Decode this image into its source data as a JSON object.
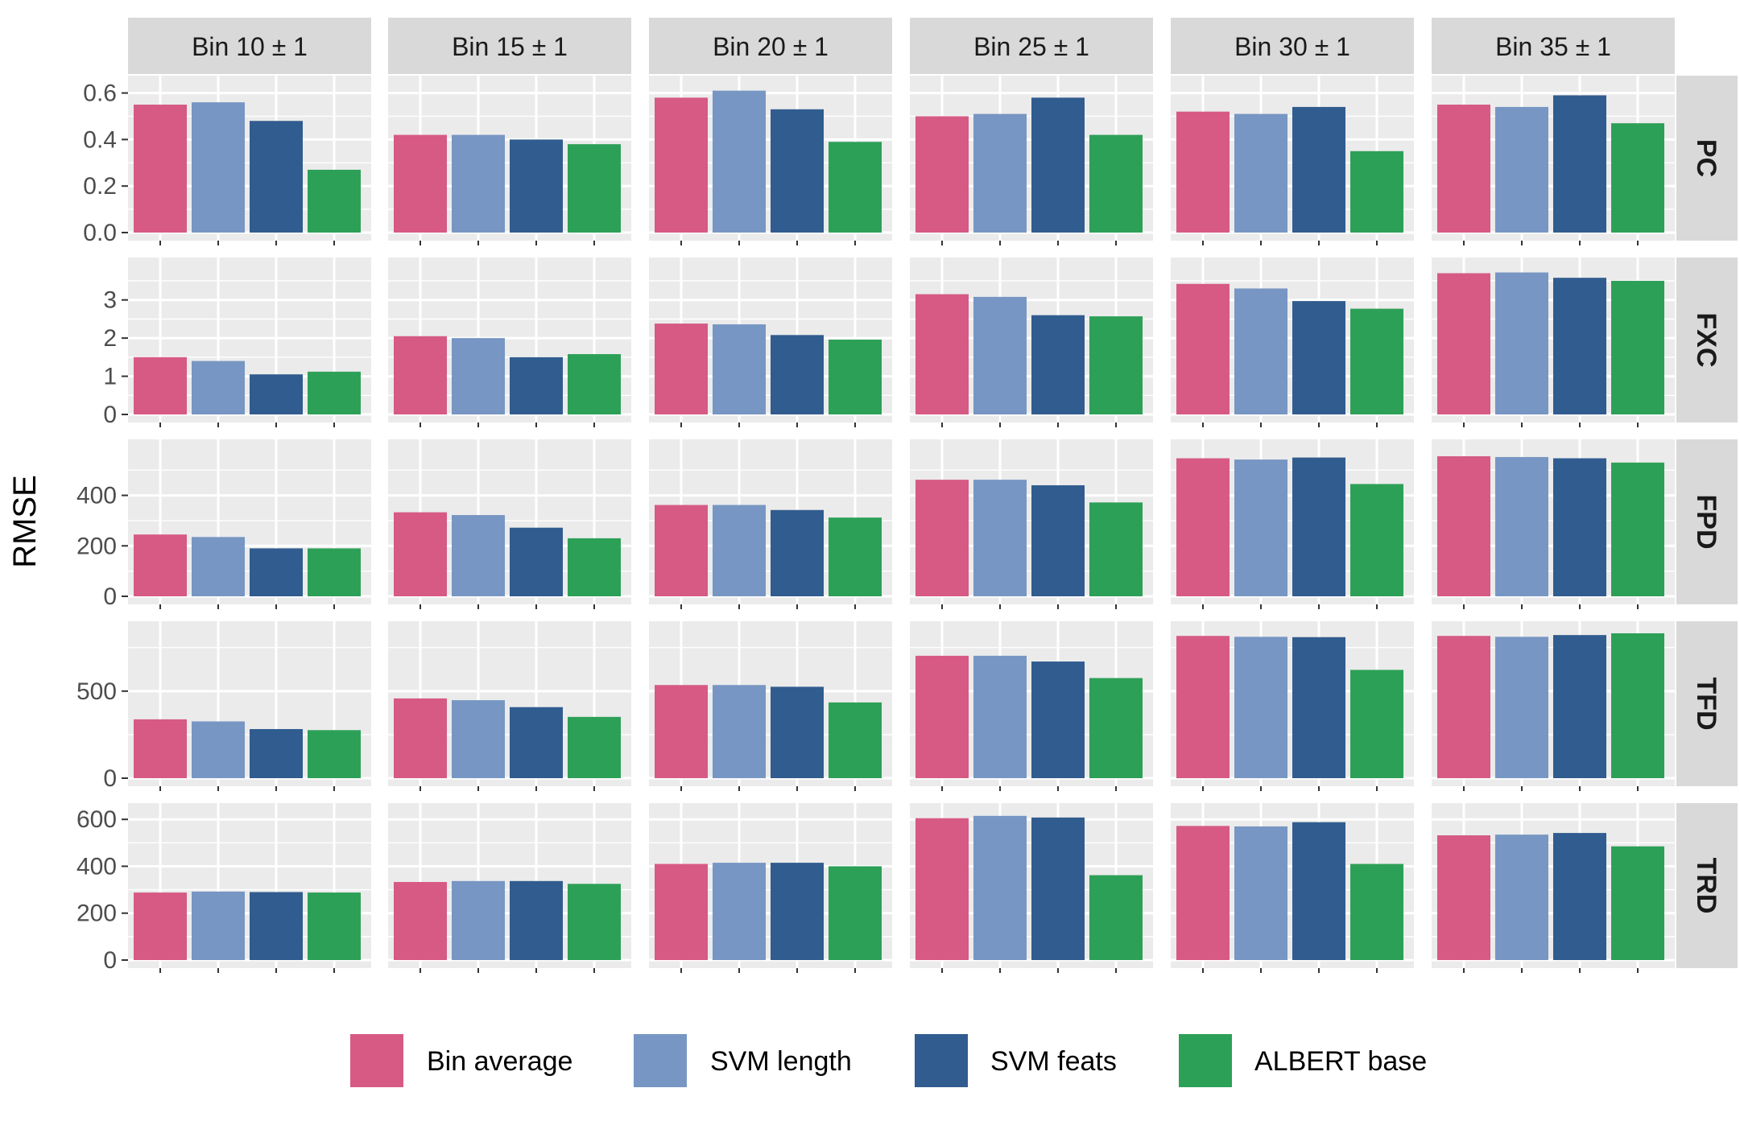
{
  "chart_data": {
    "type": "bar",
    "ylabel": "RMSE",
    "xlabel": "",
    "legend_position": "bottom",
    "grid": true,
    "columns": [
      "Bin 10 ± 1",
      "Bin 15 ± 1",
      "Bin 20 ± 1",
      "Bin 25 ± 1",
      "Bin 30 ± 1",
      "Bin 35 ± 1"
    ],
    "series": [
      {
        "name": "Bin average",
        "color": "#d65a84"
      },
      {
        "name": "SVM length",
        "color": "#7796c3"
      },
      {
        "name": "SVM feats",
        "color": "#315c8f"
      },
      {
        "name": "ALBERT base",
        "color": "#2da057"
      }
    ],
    "rows": [
      {
        "label": "PC",
        "ylim": [
          0,
          0.64
        ],
        "ticks": [
          0.0,
          0.2,
          0.4,
          0.6
        ],
        "tick_labels": [
          "0.0",
          "0.2",
          "0.4",
          "0.6"
        ],
        "values": [
          [
            0.55,
            0.56,
            0.48,
            0.27
          ],
          [
            0.42,
            0.42,
            0.4,
            0.38
          ],
          [
            0.58,
            0.61,
            0.53,
            0.39
          ],
          [
            0.5,
            0.51,
            0.58,
            0.42
          ],
          [
            0.52,
            0.51,
            0.54,
            0.35
          ],
          [
            0.55,
            0.54,
            0.59,
            0.47
          ]
        ]
      },
      {
        "label": "FXC",
        "ylim": [
          0,
          3.9
        ],
        "ticks": [
          0,
          1,
          2,
          3
        ],
        "tick_labels": [
          "0",
          "1",
          "2",
          "3"
        ],
        "values": [
          [
            1.5,
            1.4,
            1.05,
            1.12
          ],
          [
            2.05,
            2.0,
            1.5,
            1.58
          ],
          [
            2.38,
            2.36,
            2.08,
            1.96
          ],
          [
            3.15,
            3.08,
            2.6,
            2.57
          ],
          [
            3.42,
            3.3,
            2.97,
            2.77
          ],
          [
            3.7,
            3.72,
            3.58,
            3.5
          ]
        ]
      },
      {
        "label": "FPD",
        "ylim": [
          0,
          590
        ],
        "ticks": [
          0,
          200,
          400
        ],
        "tick_labels": [
          "0",
          "200",
          "400"
        ],
        "values": [
          [
            245,
            235,
            190,
            190
          ],
          [
            333,
            322,
            272,
            230
          ],
          [
            362,
            362,
            342,
            312
          ],
          [
            462,
            462,
            440,
            372
          ],
          [
            547,
            542,
            550,
            445
          ],
          [
            555,
            552,
            547,
            530
          ]
        ]
      },
      {
        "label": "TFD",
        "ylim": [
          0,
          855
        ],
        "ticks": [
          0,
          500
        ],
        "tick_labels": [
          "0",
          "500"
        ],
        "values": [
          [
            338,
            326,
            282,
            276
          ],
          [
            458,
            448,
            408,
            352
          ],
          [
            535,
            535,
            525,
            435
          ],
          [
            703,
            703,
            670,
            575
          ],
          [
            817,
            812,
            810,
            622
          ],
          [
            817,
            812,
            822,
            832
          ]
        ]
      },
      {
        "label": "TRD",
        "ylim": [
          0,
          635
        ],
        "ticks": [
          0,
          200,
          400,
          600
        ],
        "tick_labels": [
          "0",
          "200",
          "400",
          "600"
        ],
        "values": [
          [
            288,
            292,
            290,
            288
          ],
          [
            333,
            337,
            337,
            325
          ],
          [
            410,
            415,
            415,
            400
          ],
          [
            605,
            615,
            608,
            362
          ],
          [
            572,
            570,
            588,
            410
          ],
          [
            532,
            535,
            542,
            485
          ]
        ]
      }
    ]
  }
}
